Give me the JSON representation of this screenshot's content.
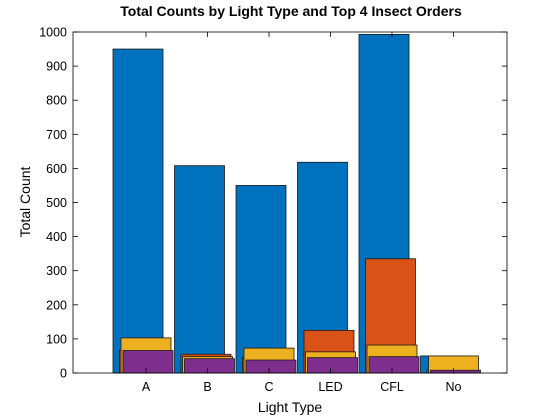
{
  "chart_data": {
    "type": "bar",
    "title": "Total Counts by Light Type and Top 4 Insect Orders",
    "xlabel": "Light Type",
    "ylabel": "Total Count",
    "categories": [
      "A",
      "B",
      "C",
      "LED",
      "CFL",
      "No"
    ],
    "ylim": [
      0,
      1000
    ],
    "yticks": [
      0,
      100,
      200,
      300,
      400,
      500,
      600,
      700,
      800,
      900,
      1000
    ],
    "grid": false,
    "series": [
      {
        "color": "#0072BD",
        "values": [
          950,
          608,
          550,
          618,
          993,
          50
        ]
      },
      {
        "color": "#D95319",
        "values": [
          67,
          55,
          45,
          125,
          335,
          10
        ]
      },
      {
        "color": "#EDB120",
        "values": [
          103,
          48,
          73,
          62,
          82,
          50
        ]
      },
      {
        "color": "#7E2F8E",
        "values": [
          66,
          42,
          38,
          45,
          48,
          8
        ]
      }
    ]
  }
}
